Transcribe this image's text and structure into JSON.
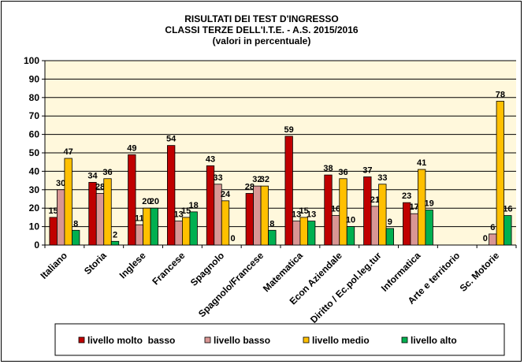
{
  "chart_data": {
    "type": "bar",
    "title": [
      "RISULTATI DEI TEST D'INGRESSO",
      "CLASSI TERZE DELL'I.T.E. - A.S. 2015/2016",
      "(valori  in percentuale)"
    ],
    "categories": [
      "Italiano",
      "Storia",
      "Inglese",
      "Francese",
      "Spagnolo",
      "Spagnolo/Francese",
      "Matematica",
      "Econ Aziendale",
      "Diritto / Ec.pol.leg.tur",
      "Informatica",
      "Arte e territorio",
      "Sc. Motorie"
    ],
    "series": [
      {
        "name": "livello molto  basso",
        "color": "#C00000",
        "values": [
          15,
          34,
          49,
          54,
          43,
          28,
          59,
          38,
          37,
          23,
          null,
          0
        ]
      },
      {
        "name": "livello basso",
        "color": "#D99694",
        "values": [
          30,
          28,
          11,
          13,
          33,
          32,
          13,
          16,
          21,
          17,
          null,
          6
        ]
      },
      {
        "name": "livello medio",
        "color": "#FFC000",
        "values": [
          47,
          36,
          20,
          15,
          24,
          32,
          15,
          36,
          33,
          41,
          null,
          78
        ]
      },
      {
        "name": "livello alto",
        "color": "#00B050",
        "values": [
          8,
          2,
          20,
          18,
          0,
          8,
          13,
          10,
          9,
          19,
          null,
          16
        ]
      }
    ],
    "ylim": [
      0,
      100
    ],
    "yticks": [
      0,
      10,
      20,
      30,
      40,
      50,
      60,
      70,
      80,
      90,
      100
    ],
    "grid": true,
    "plot_background": "#FFF8DC",
    "legend_position": "bottom"
  }
}
